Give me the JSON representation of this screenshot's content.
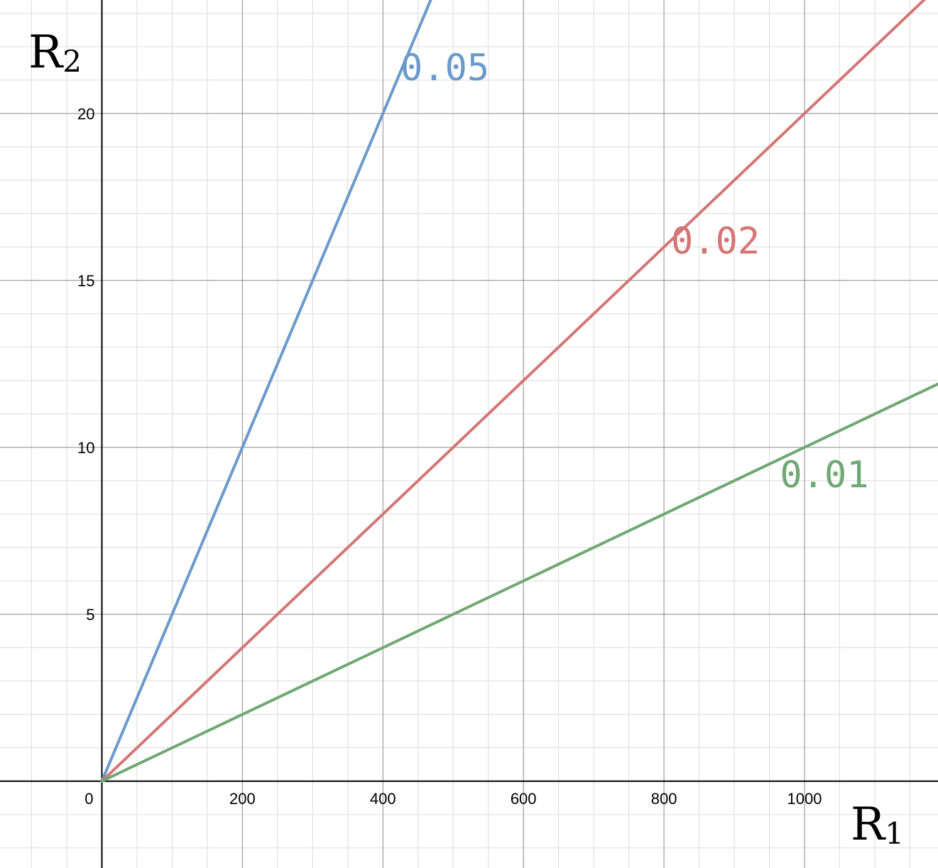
{
  "chart_data": {
    "type": "line",
    "title": "",
    "xlabel": {
      "base": "R",
      "sub": "1"
    },
    "ylabel": {
      "base": "R",
      "sub": "2"
    },
    "xlim": [
      -145,
      1190
    ],
    "ylim": [
      -2.6,
      23.4
    ],
    "x_ticks": [
      0,
      200,
      400,
      600,
      800,
      1000
    ],
    "x_tick_labels": [
      "0",
      "200",
      "400",
      "600",
      "800",
      "1000"
    ],
    "y_ticks": [
      5,
      10,
      15,
      20
    ],
    "y_tick_labels": [
      "5",
      "10",
      "15",
      "20"
    ],
    "grid": {
      "major_x": 200,
      "major_y": 5,
      "minor_x": 50,
      "minor_y": 1
    },
    "series": [
      {
        "label": "0.05",
        "slope": 0.05,
        "x": [
          0,
          470
        ],
        "y": [
          0,
          23.5
        ],
        "color": "#6a9acb",
        "label_at": [
          425,
          21
        ]
      },
      {
        "label": "0.02",
        "slope": 0.02,
        "x": [
          0,
          1190
        ],
        "y": [
          0,
          23.8
        ],
        "color": "#d47676",
        "label_at": [
          810,
          15.8
        ]
      },
      {
        "label": "0.01",
        "slope": 0.01,
        "x": [
          0,
          1190
        ],
        "y": [
          0,
          11.9
        ],
        "color": "#6fa873",
        "label_at": [
          965,
          8.8
        ]
      }
    ]
  }
}
